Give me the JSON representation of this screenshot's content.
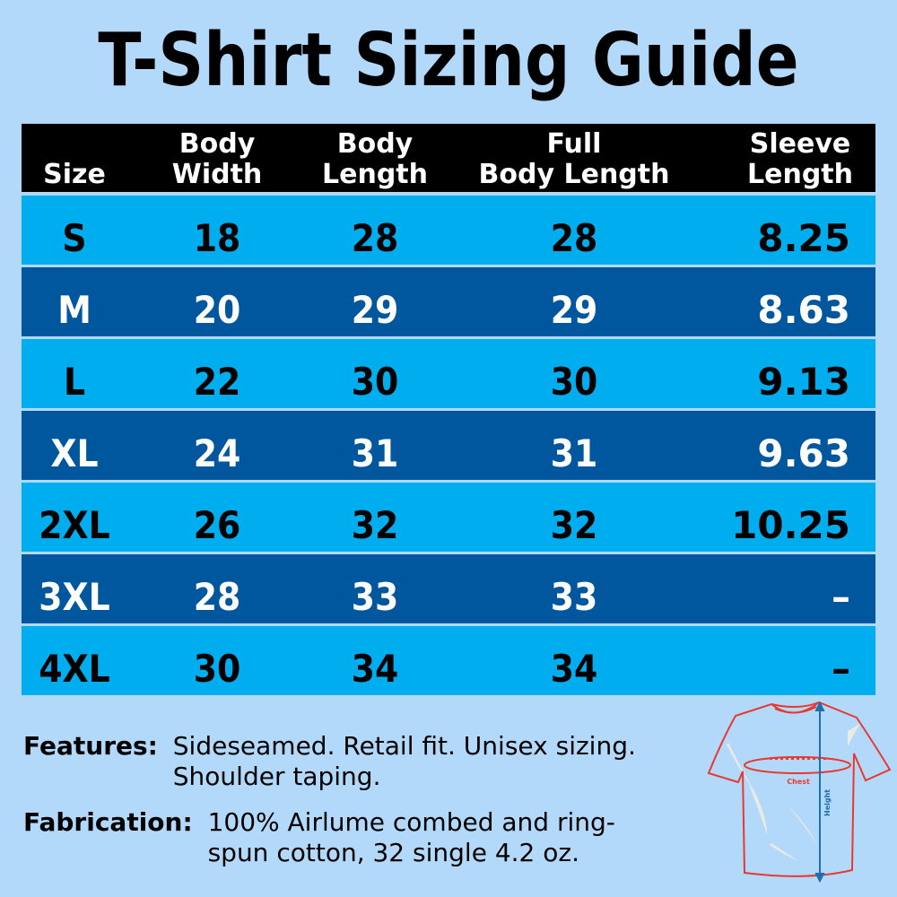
{
  "title": "T-Shirt Sizing Guide",
  "table": {
    "headers": [
      "Size",
      "Body\nWidth",
      "Body\nLength",
      "Full\nBody Length",
      "Sleeve\nLength"
    ],
    "rows": [
      {
        "size": "S",
        "body_width": "18",
        "body_length": "28",
        "full_body_length": "28",
        "sleeve_length": "8.25"
      },
      {
        "size": "M",
        "body_width": "20",
        "body_length": "29",
        "full_body_length": "29",
        "sleeve_length": "8.63"
      },
      {
        "size": "L",
        "body_width": "22",
        "body_length": "30",
        "full_body_length": "30",
        "sleeve_length": "9.13"
      },
      {
        "size": "XL",
        "body_width": "24",
        "body_length": "31",
        "full_body_length": "31",
        "sleeve_length": "9.63"
      },
      {
        "size": "2XL",
        "body_width": "26",
        "body_length": "32",
        "full_body_length": "32",
        "sleeve_length": "10.25"
      },
      {
        "size": "3XL",
        "body_width": "28",
        "body_length": "33",
        "full_body_length": "33",
        "sleeve_length": "–"
      },
      {
        "size": "4XL",
        "body_width": "30",
        "body_length": "34",
        "full_body_length": "34",
        "sleeve_length": "–"
      }
    ],
    "colors": {
      "header": "#000000",
      "light_row": "#00aeef",
      "dark_row": "#00579e",
      "background": "#b3d9fa"
    }
  },
  "features": {
    "label": "Features:",
    "value": "Sideseamed. Retail fit. Unisex sizing.\nShoulder taping."
  },
  "fabrication": {
    "label": "Fabrication:",
    "value": "100% Airlume combed and ring-\nspun cotton, 32 single 4.2 oz."
  },
  "diagram": {
    "chest_label": "Chest",
    "height_label": "Height"
  }
}
